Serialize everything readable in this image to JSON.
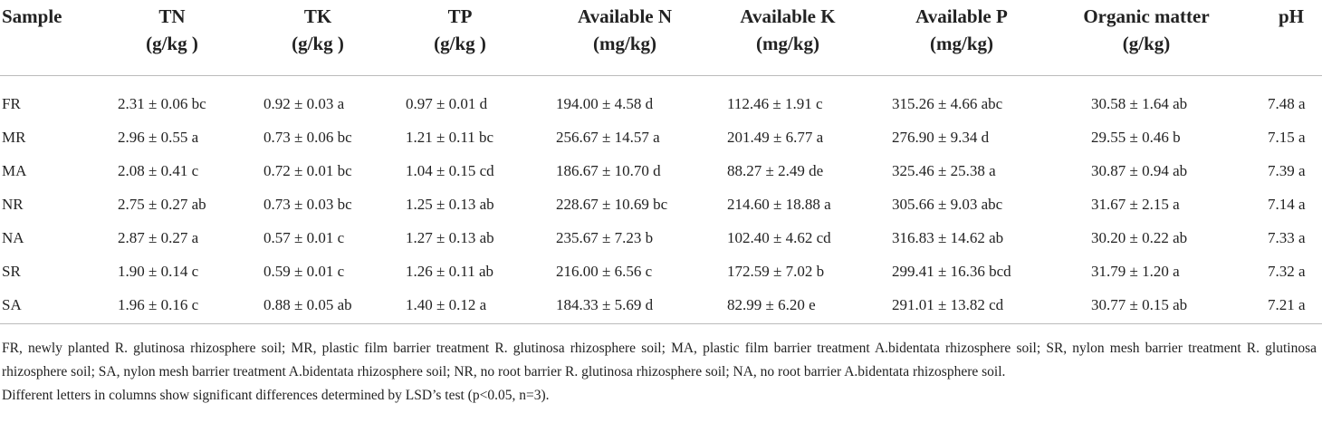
{
  "table": {
    "header": [
      [
        "Sample"
      ],
      [
        "TN",
        "(g/kg )"
      ],
      [
        "TK",
        "(g/kg )"
      ],
      [
        "TP",
        "(g/kg )"
      ],
      [
        "Available N",
        "(mg/kg)"
      ],
      [
        "Available K",
        "(mg/kg)"
      ],
      [
        "Available P",
        "(mg/kg)"
      ],
      [
        "Organic matter",
        "(g/kg)"
      ],
      [
        "pH"
      ]
    ],
    "rows": [
      [
        "FR",
        "2.31 ± 0.06 bc",
        "0.92 ± 0.03 a",
        "0.97 ± 0.01 d",
        "194.00 ± 4.58 d",
        "112.46 ± 1.91 c",
        "315.26 ± 4.66 abc",
        "30.58 ± 1.64 ab",
        "7.48 a"
      ],
      [
        "MR",
        "2.96 ± 0.55 a",
        "0.73 ± 0.06 bc",
        "1.21 ± 0.11 bc",
        "256.67 ± 14.57 a",
        "201.49 ± 6.77 a",
        "276.90 ± 9.34 d",
        "29.55 ± 0.46 b",
        "7.15 a"
      ],
      [
        "MA",
        "2.08 ± 0.41 c",
        "0.72 ± 0.01 bc",
        "1.04 ± 0.15 cd",
        "186.67 ± 10.70 d",
        "88.27 ± 2.49 de",
        "325.46 ± 25.38 a",
        "30.87 ± 0.94 ab",
        "7.39 a"
      ],
      [
        "NR",
        "2.75 ± 0.27 ab",
        "0.73 ± 0.03 bc",
        "1.25 ± 0.13 ab",
        "228.67 ± 10.69 bc",
        "214.60 ± 18.88 a",
        "305.66 ± 9.03 abc",
        "31.67 ± 2.15 a",
        "7.14 a"
      ],
      [
        "NA",
        "2.87 ± 0.27 a",
        "0.57 ± 0.01 c",
        "1.27 ± 0.13 ab",
        "235.67 ± 7.23 b",
        "102.40 ± 4.62 cd",
        "316.83 ± 14.62 ab",
        "30.20 ± 0.22 ab",
        "7.33 a"
      ],
      [
        "SR",
        "1.90 ± 0.14 c",
        "0.59 ± 0.01 c",
        "1.26 ± 0.11 ab",
        "216.00 ± 6.56 c",
        "172.59 ± 7.02 b",
        "299.41 ± 16.36 bcd",
        "31.79 ± 1.20 a",
        "7.32 a"
      ],
      [
        "SA",
        "1.96 ± 0.16 c",
        "0.88 ± 0.05 ab",
        "1.40 ± 0.12 a",
        "184.33 ± 5.69 d",
        "82.99 ± 6.20 e",
        "291.01 ± 13.82 cd",
        "30.77 ± 0.15 ab",
        "7.21 a"
      ]
    ],
    "footnotes": [
      "FR, newly planted R. glutinosa rhizosphere soil; MR, plastic film barrier treatment R. glutinosa rhizosphere soil; MA, plastic film barrier treatment A.bidentata rhizosphere soil; SR, nylon mesh barrier treatment R. glutinosa rhizosphere soil; SA, nylon mesh barrier treatment A.bidentata rhizosphere soil; NR, no root barrier R. glutinosa rhizosphere soil; NA, no root barrier A.bidentata rhizosphere soil.",
      "Different letters in columns show significant differences determined by LSD’s test (p<0.05, n=3)."
    ]
  }
}
